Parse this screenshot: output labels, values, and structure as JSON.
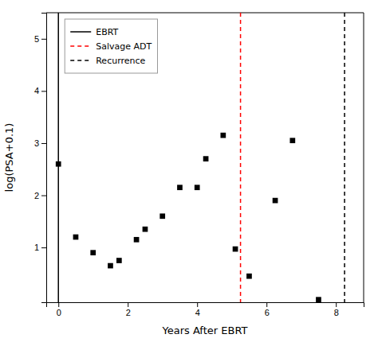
{
  "chart_data": {
    "type": "scatter",
    "x": [
      0.0,
      0.5,
      1.0,
      1.5,
      1.75,
      2.25,
      2.5,
      3.0,
      3.5,
      4.0,
      4.25,
      4.75,
      5.1,
      5.5,
      6.25,
      6.75,
      7.5
    ],
    "values": [
      2.6,
      1.2,
      0.9,
      0.65,
      0.75,
      1.15,
      1.35,
      1.6,
      2.15,
      2.15,
      2.7,
      3.15,
      0.97,
      0.45,
      1.9,
      3.05,
      0.0
    ],
    "color": "black",
    "marker": "square",
    "vlines": [
      {
        "name": "EBRT",
        "value": 0.0,
        "color": "black",
        "line_style": "solid"
      },
      {
        "name": "Salvage ADT",
        "value": 5.25,
        "color": "red",
        "line_style": "dashed"
      },
      {
        "name": "Recurrence",
        "value": 8.25,
        "color": "black",
        "line_style": "dashed"
      }
    ],
    "xlim": [
      -0.35,
      8.8
    ],
    "ylim": [
      -0.05,
      5.5
    ],
    "xticks": [
      0,
      2,
      4,
      6,
      8
    ],
    "yticks": [
      1,
      2,
      3,
      4,
      5
    ],
    "xlabel": "Years After EBRT",
    "ylabel": "log(PSA+0.1)",
    "grid": false,
    "legend": "upper left"
  }
}
